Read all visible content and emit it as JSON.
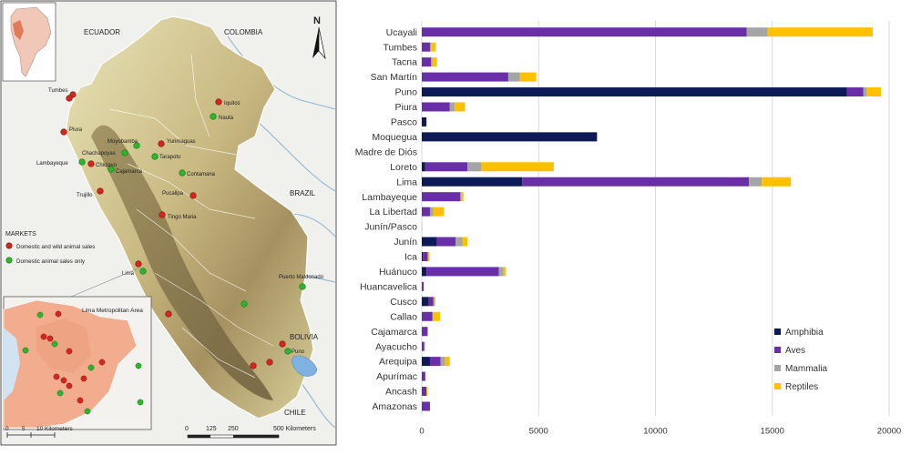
{
  "map": {
    "countries": {
      "ecuador": "ECUADOR",
      "colombia": "COLOMBIA",
      "brazil": "BRAZIL",
      "bolivia": "BOLIVIA",
      "chile": "CHILE"
    },
    "north": "N",
    "legend": {
      "title": "MARKETS",
      "wild": "Domestic and wild animal sales",
      "domestic": "Domestic animal sales only",
      "wild_color": "#d7261e",
      "domestic_color": "#2db52d"
    },
    "inset_title": "Lima Metropolitan Area",
    "cities": {
      "tumbes": "Tumbes",
      "piura": "Piura",
      "chachapoyas": "Chachapoyas",
      "moyobamba": "Moyobamba",
      "lambayeque": "Lambayeque",
      "chiclayo": "Chiclayo",
      "cajamarca": "Cajamarca",
      "tarapoto": "Tarapoto",
      "yurimaguas": "Yurimaguas",
      "iquitos": "Iquitos",
      "nauta": "Nauta",
      "contamana": "Contamana",
      "trujillo": "Trujillo",
      "pucallpa": "Pucallpa",
      "tingo_maria": "Tingo Maria",
      "lima": "Lima",
      "puerto_maldonado": "Puerto Maldonado",
      "puno": "Puno"
    },
    "scale_main": [
      "0",
      "125",
      "250",
      "500 Kilometers"
    ],
    "scale_inset": [
      "0",
      "5",
      "10 Kilometers"
    ],
    "colors": {
      "land": "#eeeeea",
      "peru_low": "#e4dfb2",
      "peru_mid": "#b9a770",
      "peru_high": "#7d6c45",
      "river": "#8fb7d6",
      "urban": "#f2ad8e"
    }
  },
  "chart_data": {
    "type": "bar",
    "orientation": "horizontal",
    "stacked": true,
    "title": "",
    "xlabel": "",
    "ylabel": "",
    "xlim": [
      0,
      20000
    ],
    "xticks": [
      0,
      5000,
      10000,
      15000,
      20000
    ],
    "grid": true,
    "legend_position": "bottom-right",
    "categories": [
      "Ucayali",
      "Tumbes",
      "Tacna",
      "San Martín",
      "Puno",
      "Piura",
      "Pasco",
      "Moquegua",
      "Madre de Diós",
      "Loreto",
      "Lima",
      "Lambayeque",
      "La Libertad",
      "Junín/Pasco",
      "Junín",
      "Ica",
      "Huánuco",
      "Huancavelica",
      "Cusco",
      "Callao",
      "Cajamarca",
      "Ayacucho",
      "Arequipa",
      "Apurímac",
      "Ancash",
      "Amazonas"
    ],
    "series": [
      {
        "name": "Amphibia",
        "color": "#0d1a57",
        "values": [
          0,
          0,
          0,
          0,
          18200,
          0,
          200,
          7500,
          0,
          150,
          4300,
          0,
          0,
          0,
          650,
          50,
          200,
          0,
          300,
          0,
          0,
          0,
          350,
          0,
          0,
          0
        ]
      },
      {
        "name": "Aves",
        "color": "#6a2fa8",
        "values": [
          13900,
          350,
          400,
          3700,
          700,
          1200,
          0,
          0,
          0,
          1800,
          9700,
          1650,
          350,
          0,
          800,
          200,
          3100,
          80,
          200,
          450,
          250,
          100,
          450,
          150,
          200,
          350
        ]
      },
      {
        "name": "Mammalia",
        "color": "#a5a5a5",
        "values": [
          900,
          50,
          50,
          500,
          150,
          200,
          0,
          0,
          0,
          600,
          550,
          50,
          150,
          0,
          300,
          30,
          200,
          0,
          30,
          30,
          0,
          30,
          200,
          0,
          0,
          0
        ]
      },
      {
        "name": "Reptiles",
        "color": "#ffc000",
        "values": [
          4500,
          200,
          200,
          700,
          600,
          450,
          0,
          0,
          0,
          3100,
          1250,
          80,
          450,
          20,
          200,
          50,
          100,
          0,
          50,
          300,
          0,
          0,
          200,
          0,
          50,
          0
        ]
      }
    ]
  }
}
